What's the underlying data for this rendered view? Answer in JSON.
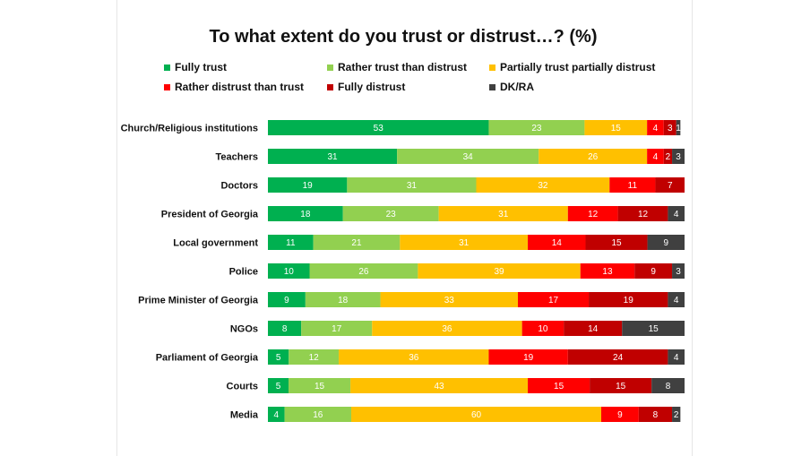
{
  "chart_data": {
    "type": "bar",
    "orientation": "horizontal",
    "stacked": true,
    "title": "To what extent do you trust or distrust…? (%)",
    "xlim": [
      0,
      100
    ],
    "grid": false,
    "legend_position": "top",
    "categories": [
      "Church/Religious institutions",
      "Teachers",
      "Doctors",
      "President of Georgia",
      "Local government",
      "Police",
      "Prime Minister of Georgia",
      "NGOs",
      "Parliament of Georgia",
      "Courts",
      "Media"
    ],
    "series": [
      {
        "name": "Fully trust",
        "color": "#00b050",
        "values": [
          53,
          31,
          19,
          18,
          11,
          10,
          9,
          8,
          5,
          5,
          4
        ]
      },
      {
        "name": "Rather trust than distrust",
        "color": "#92d050",
        "values": [
          23,
          34,
          31,
          23,
          21,
          26,
          18,
          17,
          12,
          15,
          16
        ]
      },
      {
        "name": "Partially trust partially distrust",
        "color": "#ffc000",
        "values": [
          15,
          26,
          32,
          31,
          31,
          39,
          33,
          36,
          36,
          43,
          60
        ]
      },
      {
        "name": "Rather distrust than trust",
        "color": "#ff0000",
        "values": [
          4,
          4,
          11,
          12,
          14,
          13,
          17,
          10,
          19,
          15,
          9
        ]
      },
      {
        "name": "Fully distrust",
        "color": "#c00000",
        "values": [
          3,
          2,
          7,
          12,
          15,
          9,
          19,
          14,
          24,
          15,
          8
        ]
      },
      {
        "name": "DK/RA",
        "color": "#404040",
        "values": [
          1,
          3,
          0,
          4,
          9,
          3,
          4,
          15,
          4,
          8,
          2
        ]
      }
    ]
  }
}
